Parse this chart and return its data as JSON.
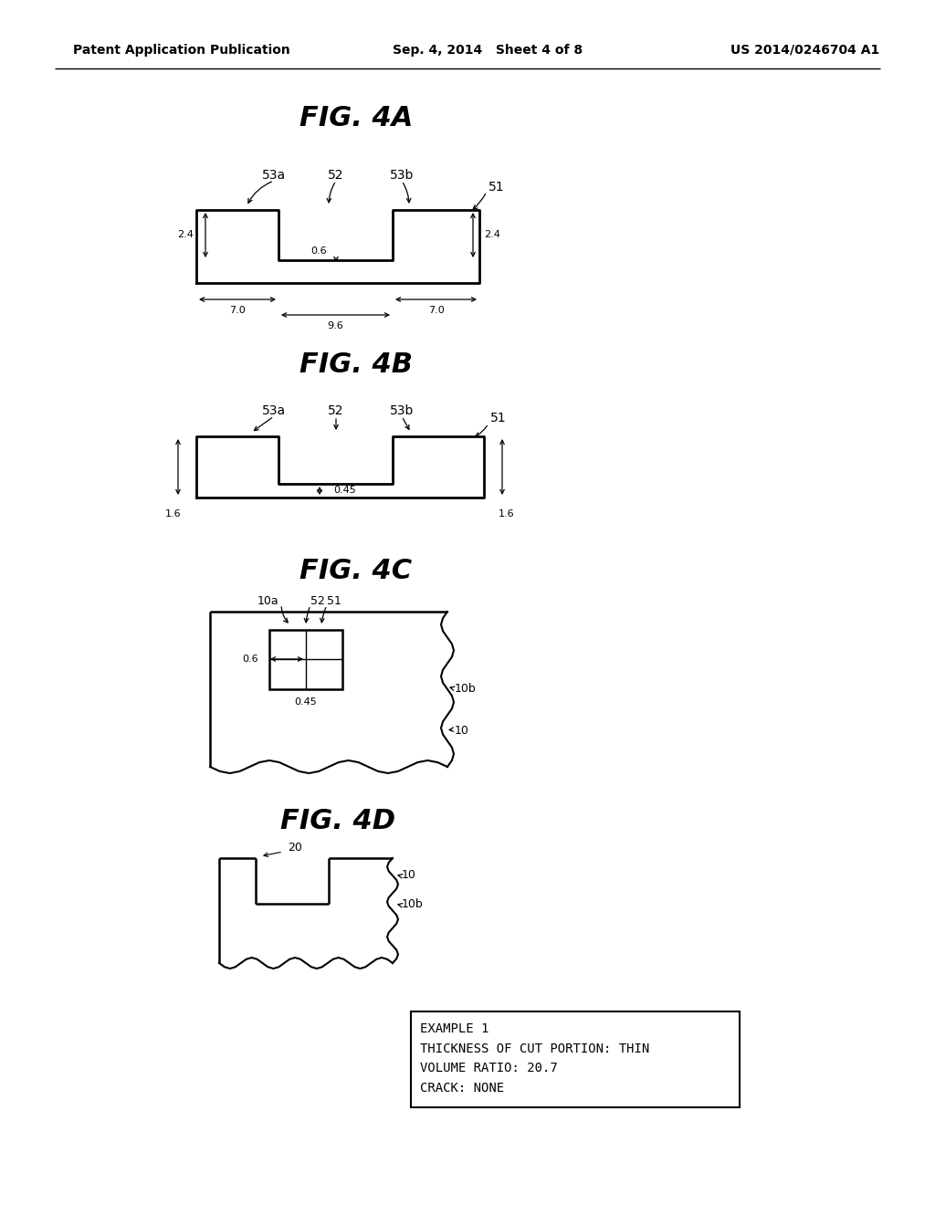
{
  "header_left": "Patent Application Publication",
  "header_mid": "Sep. 4, 2014   Sheet 4 of 8",
  "header_right": "US 2014/0246704 A1",
  "fig4a_title": "FIG. 4A",
  "fig4b_title": "FIG. 4B",
  "fig4c_title": "FIG. 4C",
  "fig4d_title": "FIG. 4D",
  "bg_color": "#ffffff",
  "line_color": "#000000",
  "text_color": "#000000",
  "box_text": "EXAMPLE 1\nTHICKNESS OF CUT PORTION: THIN\nVOLUME RATIO: 20.7\nCRACK: NONE"
}
